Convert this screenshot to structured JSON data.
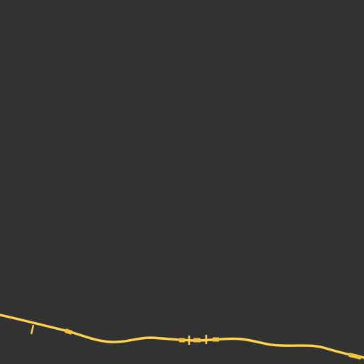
{
  "map": {
    "background_color": "#323232",
    "route_color": "#ffd34d",
    "route_marker_color": "#f3c53f",
    "features": [
      {
        "name": "highway-route",
        "kind": "road"
      },
      {
        "name": "road-junction-markers",
        "kind": "junction-markers"
      }
    ]
  }
}
